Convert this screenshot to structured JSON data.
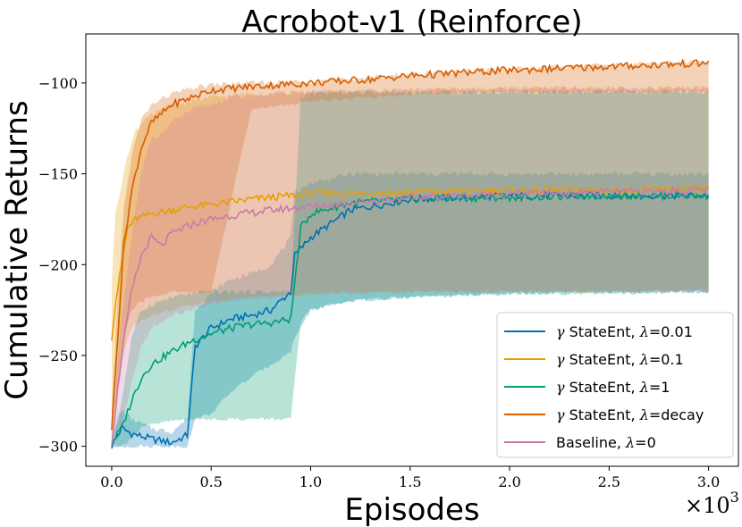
{
  "chart_data": {
    "type": "line",
    "title": "Acrobot-v1 (Reinforce)",
    "xlabel": "Episodes",
    "ylabel": "Cumulative Returns",
    "x_multiplier_label": "×10",
    "x_multiplier_exp": "3",
    "xlim": [
      -0.13,
      3.15
    ],
    "ylim": [
      -311,
      -73
    ],
    "xticks": [
      0.0,
      0.5,
      1.0,
      1.5,
      2.0,
      2.5,
      3.0
    ],
    "xtick_labels": [
      "0.0",
      "0.5",
      "1.0",
      "1.5",
      "2.0",
      "2.5",
      "3.0"
    ],
    "yticks": [
      -300,
      -250,
      -200,
      -150,
      -100
    ],
    "ytick_labels": [
      "−300",
      "−250",
      "−200",
      "−150",
      "−100"
    ],
    "grid": false,
    "legend_position": "lower-right",
    "series": [
      {
        "name": "γ StateEnt, λ=0.01",
        "legend_prefix": "γ",
        "legend_mid": " StateEnt, ",
        "legend_lambda": "λ",
        "legend_suffix": "=0.01",
        "color": "#0072b2",
        "x": [
          0,
          0.05,
          0.1,
          0.2,
          0.3,
          0.38,
          0.42,
          0.5,
          0.6,
          0.7,
          0.8,
          0.9,
          0.92,
          1.0,
          1.2,
          1.5,
          2.0,
          2.5,
          3.0
        ],
        "mean": [
          -300,
          -290,
          -293,
          -296,
          -298,
          -294,
          -245,
          -235,
          -230,
          -228,
          -225,
          -215,
          -195,
          -185,
          -170,
          -164,
          -162,
          -162,
          -162
        ],
        "upper": [
          -298,
          -280,
          -285,
          -290,
          -292,
          -285,
          -225,
          -215,
          -208,
          -205,
          -200,
          -185,
          -160,
          -155,
          -150,
          -150,
          -150,
          -150,
          -150
        ],
        "lower": [
          -300,
          -300,
          -300,
          -300,
          -300,
          -300,
          -285,
          -282,
          -270,
          -262,
          -255,
          -248,
          -240,
          -225,
          -220,
          -218,
          -216,
          -215,
          -215
        ]
      },
      {
        "name": "γ StateEnt, λ=0.1",
        "legend_prefix": "γ",
        "legend_mid": " StateEnt, ",
        "legend_lambda": "λ",
        "legend_suffix": "=0.1",
        "color": "#e69f00",
        "x": [
          0,
          0.02,
          0.05,
          0.08,
          0.12,
          0.2,
          0.3,
          0.4,
          0.5,
          0.7,
          1.0,
          1.5,
          2.0,
          2.5,
          3.0
        ],
        "mean": [
          -240,
          -220,
          -200,
          -180,
          -175,
          -172,
          -170,
          -168,
          -167,
          -164,
          -161,
          -160,
          -159,
          -159,
          -158
        ],
        "upper": [
          -210,
          -170,
          -155,
          -140,
          -125,
          -118,
          -112,
          -110,
          -108,
          -106,
          -105,
          -104,
          -103,
          -103,
          -103
        ],
        "lower": [
          -290,
          -275,
          -255,
          -240,
          -232,
          -228,
          -225,
          -222,
          -220,
          -218,
          -216,
          -215,
          -215,
          -215,
          -214
        ]
      },
      {
        "name": "γ StateEnt, λ=1",
        "legend_prefix": "γ",
        "legend_mid": " StateEnt, ",
        "legend_lambda": "λ",
        "legend_suffix": "=1",
        "color": "#009e73",
        "x": [
          0,
          0.05,
          0.1,
          0.15,
          0.2,
          0.3,
          0.4,
          0.5,
          0.6,
          0.7,
          0.8,
          0.9,
          0.95,
          1.0,
          1.2,
          1.5,
          2.0,
          2.5,
          3.0
        ],
        "mean": [
          -298,
          -290,
          -275,
          -262,
          -255,
          -248,
          -242,
          -238,
          -235,
          -233,
          -232,
          -230,
          -180,
          -172,
          -166,
          -164,
          -163,
          -162,
          -162
        ],
        "upper": [
          -296,
          -275,
          -240,
          -225,
          -222,
          -218,
          -216,
          -215,
          -215,
          -215,
          -215,
          -215,
          -108,
          -106,
          -105,
          -105,
          -105,
          -105,
          -105
        ],
        "lower": [
          -300,
          -300,
          -295,
          -290,
          -288,
          -286,
          -285,
          -285,
          -285,
          -285,
          -285,
          -285,
          -232,
          -225,
          -220,
          -218,
          -216,
          -216,
          -215
        ]
      },
      {
        "name": "γ StateEnt, λ=decay",
        "legend_prefix": "γ",
        "legend_mid": " StateEnt, ",
        "legend_lambda": "λ",
        "legend_suffix": "=decay",
        "color": "#d55e00",
        "x": [
          0,
          0.03,
          0.06,
          0.1,
          0.15,
          0.2,
          0.3,
          0.4,
          0.5,
          0.7,
          1.0,
          1.3,
          1.5,
          2.0,
          2.5,
          3.0
        ],
        "mean": [
          -290,
          -240,
          -190,
          -160,
          -135,
          -122,
          -112,
          -108,
          -104,
          -102,
          -100,
          -98,
          -96,
          -93,
          -91,
          -89
        ],
        "upper": [
          -285,
          -220,
          -170,
          -140,
          -120,
          -112,
          -106,
          -103,
          -101,
          -100,
          -99,
          -97,
          -95,
          -92,
          -90,
          -88
        ],
        "lower": [
          -295,
          -270,
          -240,
          -225,
          -220,
          -218,
          -215,
          -215,
          -215,
          -115,
          -110,
          -108,
          -106,
          -105,
          -105,
          -105
        ]
      },
      {
        "name": "Baseline, λ=0",
        "legend_prefix": "",
        "legend_mid": "Baseline, ",
        "legend_lambda": "λ",
        "legend_suffix": "=0",
        "color": "#cc79a7",
        "x": [
          0,
          0.05,
          0.1,
          0.15,
          0.2,
          0.25,
          0.3,
          0.4,
          0.5,
          0.6,
          0.8,
          1.0,
          1.5,
          2.0,
          2.5,
          3.0
        ],
        "mean": [
          -298,
          -250,
          -215,
          -195,
          -185,
          -190,
          -183,
          -178,
          -175,
          -173,
          -170,
          -168,
          -163,
          -161,
          -160,
          -159
        ],
        "upper": [
          -290,
          -230,
          -185,
          -150,
          -130,
          -128,
          -122,
          -115,
          -112,
          -108,
          -106,
          -105,
          -104,
          -103,
          -103,
          -103
        ],
        "lower": [
          -300,
          -290,
          -265,
          -245,
          -235,
          -232,
          -228,
          -225,
          -222,
          -220,
          -218,
          -216,
          -215,
          -215,
          -215,
          -215
        ]
      }
    ]
  }
}
